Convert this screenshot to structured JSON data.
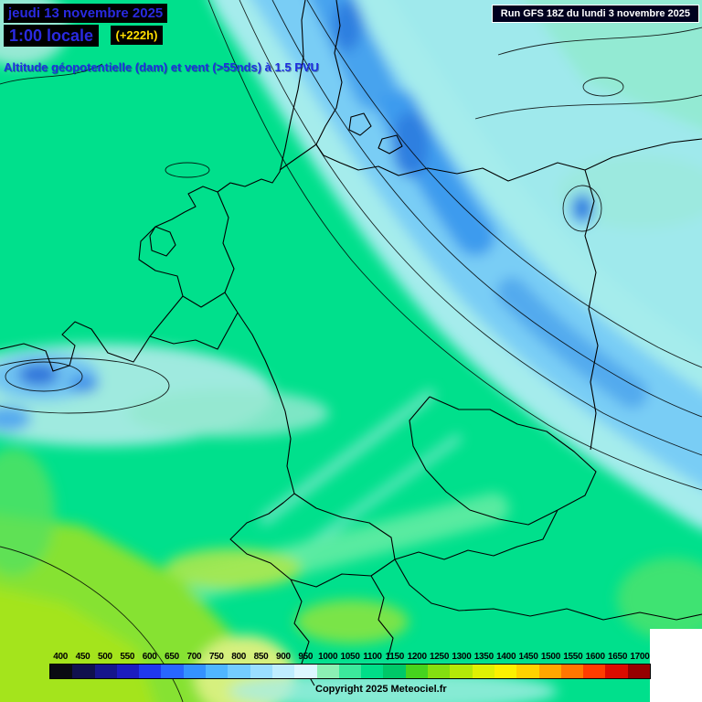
{
  "header": {
    "date": "jeudi 13 novembre 2025",
    "local_time": "1:00 locale",
    "forecast_offset": "(+222h)",
    "run": "Run GFS 18Z du lundi 3 novembre 2025",
    "title": "Altitude géopotentielle (dam) et vent (>55nds) à 1.5 PVU"
  },
  "footer": {
    "copyright": "Copyright 2025 Meteociel.fr"
  },
  "colorbar": {
    "unit": "dam",
    "values": [
      400,
      450,
      500,
      550,
      600,
      650,
      700,
      750,
      800,
      850,
      900,
      950,
      1000,
      1050,
      1100,
      1150,
      1200,
      1250,
      1300,
      1350,
      1400,
      1450,
      1500,
      1550,
      1600,
      1650,
      1700
    ],
    "colors": [
      "#0a0a12",
      "#10104e",
      "#16168c",
      "#1c1cc0",
      "#2038ee",
      "#2866ff",
      "#3492ff",
      "#50b6ff",
      "#74ccff",
      "#9adeff",
      "#bfedff",
      "#ddf7ff",
      "#8cf0b4",
      "#3ce89c",
      "#00de88",
      "#00c868",
      "#46d31e",
      "#84df10",
      "#b4e808",
      "#dff004",
      "#fcf000",
      "#ffd200",
      "#ffa600",
      "#ff7600",
      "#ff3c00",
      "#dc0c00",
      "#960000"
    ]
  },
  "colors": {
    "map_background_green": "#00e08c",
    "band_light_blue": "#79cdf5",
    "band_pale_cyan": "#a5ecec",
    "accent_text_blue": "#2a2ae0",
    "accent_text_yellow": "#ffdd00"
  }
}
